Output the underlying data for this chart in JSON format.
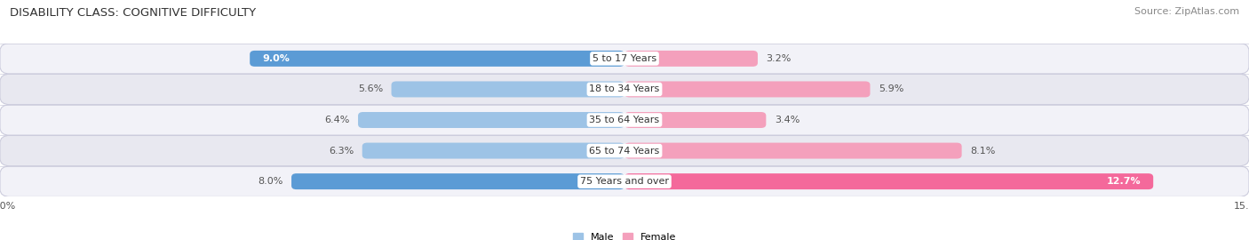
{
  "title": "DISABILITY CLASS: COGNITIVE DIFFICULTY",
  "source": "Source: ZipAtlas.com",
  "categories": [
    "5 to 17 Years",
    "18 to 34 Years",
    "35 to 64 Years",
    "65 to 74 Years",
    "75 Years and over"
  ],
  "male_values": [
    9.0,
    5.6,
    6.4,
    6.3,
    8.0
  ],
  "female_values": [
    3.2,
    5.9,
    3.4,
    8.1,
    12.7
  ],
  "male_color_dark": "#5b9bd5",
  "male_color_light": "#9dc3e6",
  "female_color_dark": "#f4699b",
  "female_color_light": "#f4a0bc",
  "row_bg_even": "#f2f2f8",
  "row_bg_odd": "#e8e8f0",
  "xlim": 15.0,
  "bar_height": 0.52,
  "title_fontsize": 9.5,
  "source_fontsize": 8,
  "label_fontsize": 8,
  "category_fontsize": 8,
  "axis_fontsize": 8
}
